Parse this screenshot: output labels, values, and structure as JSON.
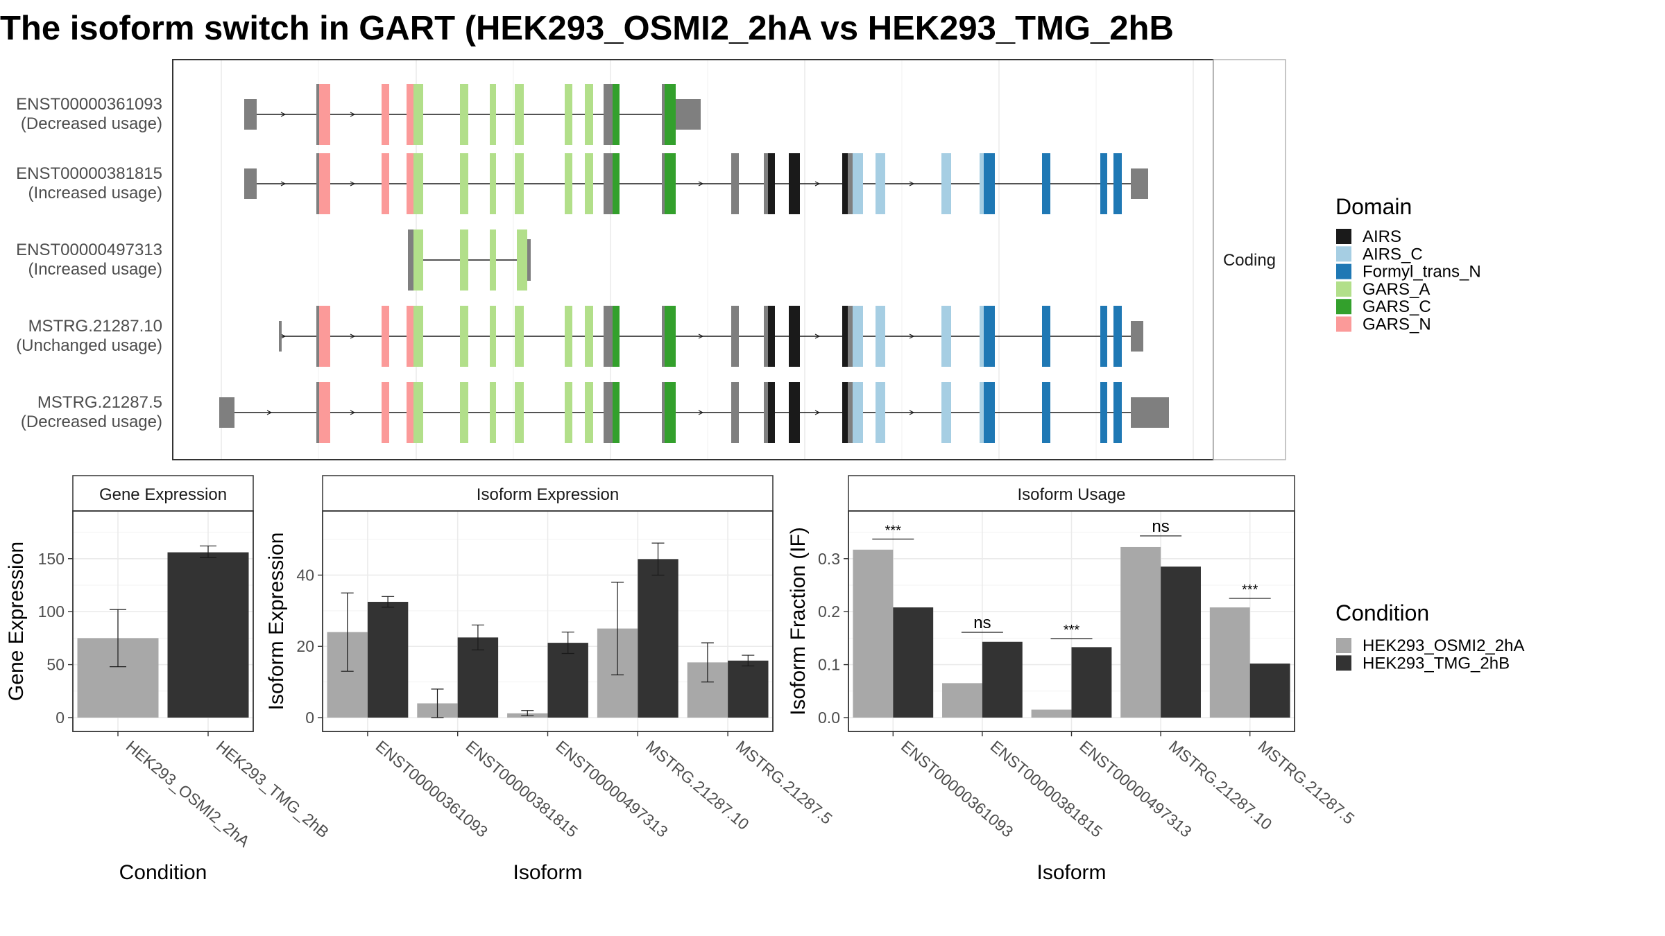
{
  "title": "The isoform switch in GART (HEK293_OSMI2_2hA vs HEK293_TMG_2hB",
  "colors": {
    "AIRS": "#1a1a1a",
    "AIRS_C": "#a6cee3",
    "Formyl_trans_N": "#1f78b4",
    "GARS_A": "#b2df8a",
    "GARS_C": "#33a02c",
    "GARS_N": "#fb9a99",
    "exon": "#7f7f7f",
    "cond_a": "#a8a8a8",
    "cond_b": "#333333",
    "grid": "#ebebeb"
  },
  "structure": {
    "strip_label": "Coding",
    "x_range": [
      0,
      1000
    ],
    "transcripts": [
      {
        "id": "ENST00000361093",
        "status": "(Decreased usage)"
      },
      {
        "id": "ENST00000381815",
        "status": "(Increased usage)"
      },
      {
        "id": "ENST00000497313",
        "status": "(Increased usage)"
      },
      {
        "id": "MSTRG.21287.10",
        "status": "(Unchanged usage)"
      },
      {
        "id": "MSTRG.21287.5",
        "status": "(Decreased usage)"
      }
    ],
    "legend": {
      "title": "Domain",
      "entries": [
        "AIRS",
        "AIRS_C",
        "Formyl_trans_N",
        "GARS_A",
        "GARS_C",
        "GARS_N"
      ]
    }
  },
  "condition_legend": {
    "title": "Condition",
    "entries": [
      "HEK293_OSMI2_2hA",
      "HEK293_TMG_2hB"
    ]
  },
  "chart_data": [
    {
      "type": "bar",
      "title": "Gene Expression",
      "xlabel": "Condition",
      "ylabel": "Gene Expression",
      "ylim": [
        0,
        195
      ],
      "yticks": [
        0,
        50,
        100,
        150
      ],
      "categories": [
        "HEK293_OSMI2_2hA",
        "HEK293_TMG_2hB"
      ],
      "values": [
        75,
        156
      ],
      "errors": [
        [
          48,
          102
        ],
        [
          151,
          162
        ]
      ]
    },
    {
      "type": "bar",
      "title": "Isoform Expression",
      "xlabel": "Isoform",
      "ylabel": "Isoform Expression",
      "ylim": [
        0,
        58
      ],
      "yticks": [
        0,
        20,
        40
      ],
      "categories": [
        "ENST00000361093",
        "ENST00000381815",
        "ENST00000497313",
        "MSTRG.21287.10",
        "MSTRG.21287.5"
      ],
      "series": [
        {
          "name": "HEK293_OSMI2_2hA",
          "values": [
            24,
            4,
            1.2,
            25,
            15.5
          ],
          "errors": [
            [
              13,
              35
            ],
            [
              0,
              8
            ],
            [
              0.5,
              2
            ],
            [
              12,
              38
            ],
            [
              10,
              21
            ]
          ]
        },
        {
          "name": "HEK293_TMG_2hB",
          "values": [
            32.5,
            22.5,
            21,
            44.5,
            16
          ],
          "errors": [
            [
              31,
              34
            ],
            [
              19,
              26
            ],
            [
              18,
              24
            ],
            [
              40,
              49
            ],
            [
              14.5,
              17.5
            ]
          ]
        }
      ]
    },
    {
      "type": "bar",
      "title": "Isoform Usage",
      "xlabel": "Isoform",
      "ylabel": "Isoform Fraction (IF)",
      "ylim": [
        0,
        0.39
      ],
      "yticks": [
        0.0,
        0.1,
        0.2,
        0.3
      ],
      "ytick_labels": [
        "0.0",
        "0.1",
        "0.2",
        "0.3"
      ],
      "categories": [
        "ENST00000361093",
        "ENST00000381815",
        "ENST00000497313",
        "MSTRG.21287.10",
        "MSTRG.21287.5"
      ],
      "series": [
        {
          "name": "HEK293_OSMI2_2hA",
          "values": [
            0.317,
            0.065,
            0.015,
            0.322,
            0.208
          ]
        },
        {
          "name": "HEK293_TMG_2hB",
          "values": [
            0.208,
            0.143,
            0.133,
            0.285,
            0.102
          ]
        }
      ],
      "significance": [
        {
          "label": "***",
          "y": 0.337
        },
        {
          "label": "ns",
          "y": 0.161
        },
        {
          "label": "***",
          "y": 0.149
        },
        {
          "label": "ns",
          "y": 0.343
        },
        {
          "label": "***",
          "y": 0.225
        }
      ]
    }
  ]
}
